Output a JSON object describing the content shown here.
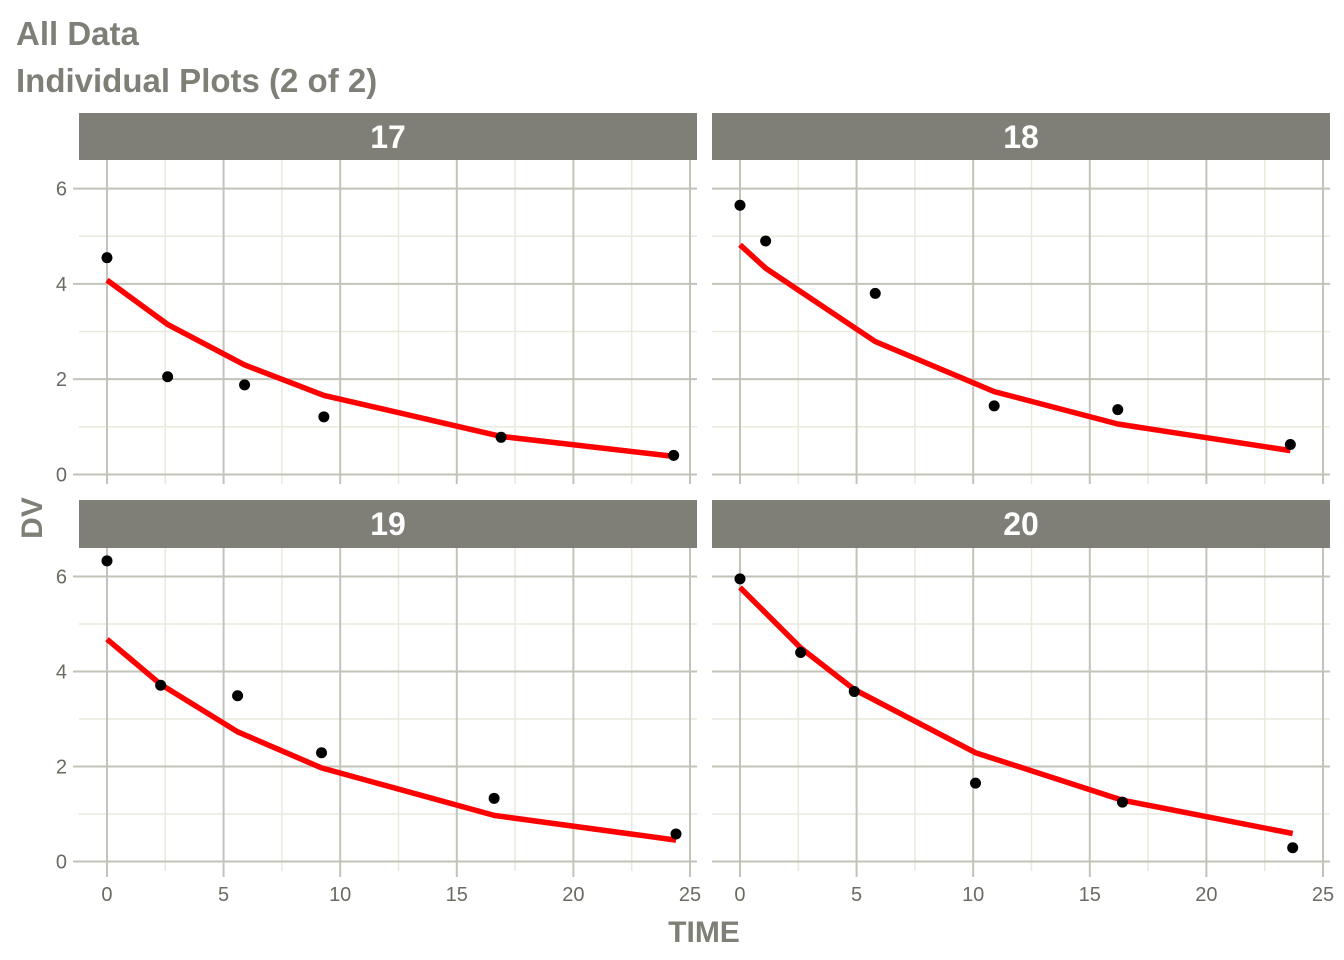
{
  "chart_data": {
    "type": "scatter",
    "title": "All Data",
    "subtitle": "Individual Plots (2 of 2)",
    "xlabel": "TIME",
    "ylabel": "DV",
    "xlim": [
      -1.2,
      25.3
    ],
    "ylim": [
      -0.2,
      6.6
    ],
    "x_ticks": [
      0,
      5,
      10,
      15,
      20,
      25
    ],
    "x_tick_labels": [
      "0",
      "5",
      "10",
      "15",
      "20",
      "25"
    ],
    "y_ticks": [
      0,
      2,
      4,
      6
    ],
    "y_tick_labels": [
      "0",
      "2",
      "4",
      "6"
    ],
    "grid": true,
    "facet_layout": "2x2",
    "colors": {
      "points": "#000000",
      "line": "#ff0000",
      "strip_background": "#7f7f77",
      "strip_text": "#ffffff",
      "grid_major": "#c3c3b9",
      "grid_minor": "#e9e9dd",
      "text": "#7f7f77"
    },
    "panels": [
      {
        "label": "17",
        "points": {
          "x": [
            0,
            2.6,
            5.9,
            9.3,
            16.9,
            24.3
          ],
          "y": [
            4.55,
            2.05,
            1.88,
            1.21,
            0.78,
            0.4
          ]
        },
        "line": {
          "x": [
            0,
            2.6,
            5.9,
            9.3,
            16.9,
            24.3
          ],
          "y": [
            4.08,
            3.15,
            2.3,
            1.66,
            0.8,
            0.38
          ]
        }
      },
      {
        "label": "18",
        "points": {
          "x": [
            0,
            1.1,
            5.8,
            10.9,
            16.2,
            23.6
          ],
          "y": [
            5.65,
            4.9,
            3.8,
            1.44,
            1.36,
            0.63
          ]
        },
        "line": {
          "x": [
            0,
            1.1,
            5.8,
            10.9,
            16.2,
            23.6
          ],
          "y": [
            4.82,
            4.33,
            2.79,
            1.74,
            1.06,
            0.5
          ]
        }
      },
      {
        "label": "19",
        "points": {
          "x": [
            0,
            2.3,
            5.6,
            9.2,
            16.6,
            24.4
          ],
          "y": [
            6.33,
            3.71,
            3.49,
            2.29,
            1.33,
            0.58
          ]
        },
        "line": {
          "x": [
            0,
            2.3,
            5.6,
            9.2,
            16.6,
            24.4
          ],
          "y": [
            4.68,
            3.73,
            2.73,
            1.97,
            0.97,
            0.45
          ]
        }
      },
      {
        "label": "20",
        "points": {
          "x": [
            0,
            2.6,
            4.9,
            10.1,
            16.4,
            23.7
          ],
          "y": [
            5.95,
            4.4,
            3.58,
            1.65,
            1.25,
            0.29
          ]
        },
        "line": {
          "x": [
            0,
            2.6,
            4.9,
            10.1,
            16.4,
            23.7
          ],
          "y": [
            5.77,
            4.5,
            3.62,
            2.29,
            1.29,
            0.59
          ]
        }
      }
    ]
  }
}
